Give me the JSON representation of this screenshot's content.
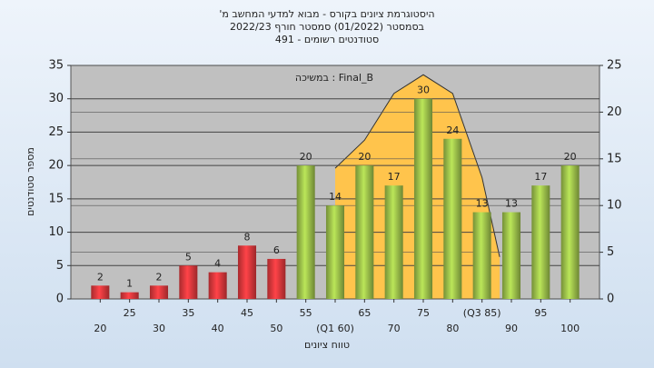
{
  "chart_data": {
    "type": "bar",
    "title": [
      "היסטוגרמת ציונים בקורס - מבוא למדעי המחשב מ'",
      "בסמסטר (01/2022) סמסטר חורף 2022/23",
      "סטודנטים רשומים - 491"
    ],
    "annotation": "Final_B : במשיכה",
    "xlabel": "טווח ציונים",
    "ylabel": "מספר סטודנטים",
    "xlim": [
      15,
      105
    ],
    "xticks": [
      20,
      25,
      30,
      35,
      40,
      45,
      50,
      55,
      {
        "value": 60,
        "label": "(Q1 60)"
      },
      65,
      70,
      75,
      80,
      {
        "value": 85,
        "label": "(Q3 85)"
      },
      90,
      95,
      100
    ],
    "ylim": [
      0,
      35
    ],
    "yticks": [
      0,
      5,
      10,
      15,
      20,
      25,
      30,
      35
    ],
    "y2lim": [
      0,
      25
    ],
    "y2ticks": [
      0,
      5,
      10,
      15,
      20,
      25
    ],
    "grid": true,
    "x": [
      20,
      25,
      30,
      35,
      40,
      45,
      50,
      55,
      60,
      65,
      70,
      75,
      80,
      85,
      90,
      95,
      100
    ],
    "values": [
      2,
      1,
      2,
      5,
      4,
      8,
      6,
      20,
      14,
      20,
      17,
      30,
      24,
      13,
      13,
      17,
      20
    ],
    "colors": [
      "#e0383c",
      "#e0383c",
      "#e0383c",
      "#e0383c",
      "#e0383c",
      "#e0383c",
      "#e0383c",
      "#9cc04a",
      "#9cc04a",
      "#9cc04a",
      "#9cc04a",
      "#9cc04a",
      "#9cc04a",
      "#9cc04a",
      "#9cc04a",
      "#9cc04a",
      "#9cc04a"
    ],
    "curve": {
      "type": "area",
      "axis": "y2",
      "color": "#ffc44c",
      "line_color": "#333333",
      "x": [
        60,
        65,
        70,
        75,
        80,
        85,
        88
      ],
      "values": [
        14,
        17,
        22,
        24,
        22,
        13,
        4.5
      ]
    }
  }
}
